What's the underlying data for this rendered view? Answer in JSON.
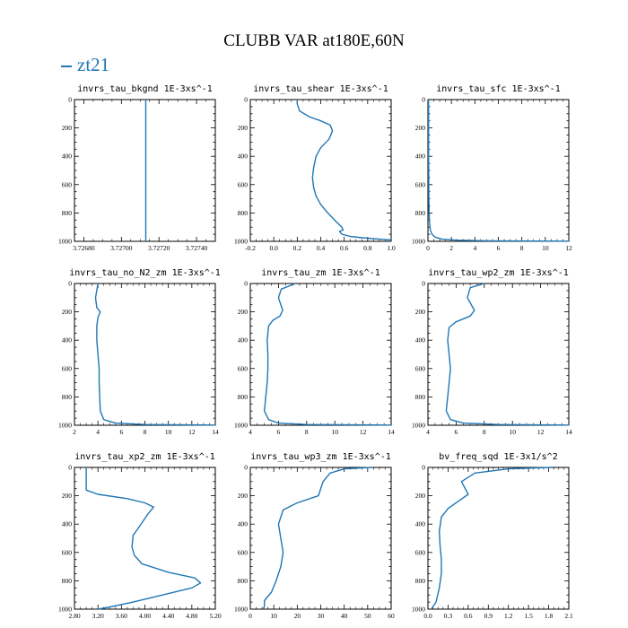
{
  "title": "CLUBB VAR at180E,60N",
  "legend": {
    "label": "zt21",
    "color": "#1f77b4"
  },
  "chart_data": [
    {
      "type": "line",
      "title": "invrs_tau_bkgnd   1E-3xs^-1",
      "xlim": [
        3.72675,
        3.7275
      ],
      "xticks": [
        "3.72680",
        "3.72700",
        "3.72720",
        "3.72740"
      ],
      "xtick_values": [
        3.7268,
        3.727,
        3.7272,
        3.7274
      ],
      "ylim": [
        1000,
        0
      ],
      "yticks": [
        "0",
        "200",
        "400",
        "600",
        "800",
        "1000"
      ],
      "series": [
        {
          "x": [
            3.72713,
            3.72713
          ],
          "y": [
            0,
            1000
          ]
        }
      ]
    },
    {
      "type": "line",
      "title": "invrs_tau_shear   1E-3xs^-1",
      "xlim": [
        -0.2,
        1.0
      ],
      "xticks": [
        "-0.2",
        "0.0",
        "0.2",
        "0.4",
        "0.6",
        "0.8",
        "1.0"
      ],
      "xtick_values": [
        -0.2,
        0.0,
        0.2,
        0.4,
        0.6,
        0.8,
        1.0
      ],
      "ylim": [
        1000,
        0
      ],
      "yticks": [
        "0",
        "200",
        "400",
        "600",
        "800",
        "1000"
      ],
      "series": [
        {
          "x": [
            0.2,
            0.2,
            0.22,
            0.3,
            0.4,
            0.48,
            0.5,
            0.47,
            0.4,
            0.36,
            0.34,
            0.33,
            0.34,
            0.36,
            0.4,
            0.46,
            0.53,
            0.58,
            0.59,
            0.56,
            0.58,
            0.65,
            0.75,
            0.9,
            1.0
          ],
          "y": [
            0,
            30,
            80,
            120,
            150,
            180,
            220,
            280,
            340,
            400,
            480,
            550,
            620,
            680,
            740,
            800,
            860,
            900,
            920,
            930,
            950,
            965,
            975,
            985,
            990
          ]
        }
      ]
    },
    {
      "type": "line",
      "title": "invrs_tau_sfc   1E-3xs^-1",
      "xlim": [
        0,
        12
      ],
      "xticks": [
        "0",
        "2",
        "4",
        "6",
        "8",
        "10",
        "12"
      ],
      "xtick_values": [
        0,
        2,
        4,
        6,
        8,
        10,
        12
      ],
      "ylim": [
        1000,
        0
      ],
      "yticks": [
        "0",
        "200",
        "400",
        "600",
        "800",
        "1000"
      ],
      "series": [
        {
          "x": [
            0.05,
            0.05,
            0.08,
            0.12,
            0.2,
            0.35,
            0.6,
            1.2,
            2.5,
            5.0,
            9.0,
            12.0
          ],
          "y": [
            0,
            400,
            700,
            850,
            920,
            950,
            970,
            985,
            992,
            996,
            998,
            999
          ]
        }
      ]
    },
    {
      "type": "line",
      "title": "invrs_tau_no_N2_zm   1E-3xs^-1",
      "xlim": [
        2,
        14
      ],
      "xticks": [
        "2",
        "4",
        "6",
        "8",
        "10",
        "12",
        "14"
      ],
      "xtick_values": [
        2,
        4,
        6,
        8,
        10,
        12,
        14
      ],
      "ylim": [
        1000,
        0
      ],
      "yticks": [
        "0",
        "200",
        "400",
        "600",
        "800",
        "1000"
      ],
      "series": [
        {
          "x": [
            4.0,
            3.8,
            3.9,
            4.2,
            4.0,
            3.9,
            3.9,
            4.0,
            4.1,
            4.1,
            4.2,
            4.5,
            5.5,
            8.0,
            14.0
          ],
          "y": [
            0,
            100,
            170,
            200,
            240,
            300,
            400,
            500,
            600,
            700,
            900,
            960,
            985,
            995,
            999
          ]
        }
      ]
    },
    {
      "type": "line",
      "title": "invrs_tau_zm   1E-3xs^-1",
      "xlim": [
        4,
        14
      ],
      "xticks": [
        "4",
        "6",
        "8",
        "10",
        "12",
        "14"
      ],
      "xtick_values": [
        4,
        6,
        8,
        10,
        12,
        14
      ],
      "ylim": [
        1000,
        0
      ],
      "yticks": [
        "0",
        "200",
        "400",
        "600",
        "800",
        "1000"
      ],
      "series": [
        {
          "x": [
            7.2,
            6.2,
            6.0,
            6.3,
            6.1,
            5.6,
            5.3,
            5.2,
            5.25,
            5.25,
            5.2,
            5.0,
            5.3,
            6.0,
            8.0,
            14.0
          ],
          "y": [
            0,
            40,
            100,
            190,
            230,
            260,
            300,
            400,
            500,
            600,
            700,
            900,
            960,
            985,
            995,
            999
          ]
        }
      ]
    },
    {
      "type": "line",
      "title": "invrs_tau_wp2_zm   1E-3xs^-1",
      "xlim": [
        4,
        14
      ],
      "xticks": [
        "4",
        "6",
        "8",
        "10",
        "12",
        "14"
      ],
      "xtick_values": [
        4,
        6,
        8,
        10,
        12,
        14
      ],
      "ylim": [
        1000,
        0
      ],
      "yticks": [
        "0",
        "200",
        "400",
        "600",
        "800",
        "1000"
      ],
      "series": [
        {
          "x": [
            8.0,
            7.0,
            6.8,
            7.3,
            7.0,
            6.0,
            5.5,
            5.4,
            5.5,
            5.6,
            5.5,
            5.3,
            5.6,
            6.5,
            9.0,
            14.0
          ],
          "y": [
            0,
            30,
            100,
            190,
            230,
            270,
            310,
            400,
            500,
            600,
            700,
            900,
            960,
            985,
            995,
            999
          ]
        }
      ]
    },
    {
      "type": "line",
      "title": "invrs_tau_xp2_zm   1E-3xs^-1",
      "xlim": [
        2.8,
        5.2
      ],
      "xticks": [
        "2.80",
        "3.20",
        "3.60",
        "4.00",
        "4.40",
        "4.80",
        "5.20"
      ],
      "xtick_values": [
        2.8,
        3.2,
        3.6,
        4.0,
        4.4,
        4.8,
        5.2
      ],
      "ylim": [
        1000,
        0
      ],
      "yticks": [
        "0",
        "200",
        "400",
        "600",
        "800",
        "1000"
      ],
      "series": [
        {
          "x": [
            3.0,
            3.0,
            3.0,
            3.2,
            3.7,
            4.0,
            4.15,
            4.05,
            3.9,
            3.8,
            3.78,
            3.82,
            3.95,
            4.4,
            4.85,
            4.95,
            4.8,
            4.3,
            3.8,
            3.4,
            3.2
          ],
          "y": [
            0,
            100,
            160,
            190,
            220,
            250,
            280,
            330,
            420,
            480,
            560,
            620,
            680,
            740,
            780,
            815,
            850,
            900,
            950,
            985,
            1000
          ]
        }
      ]
    },
    {
      "type": "line",
      "title": "invrs_tau_wp3_zm   1E-3xs^-1",
      "xlim": [
        0,
        60
      ],
      "xticks": [
        "0",
        "10",
        "20",
        "30",
        "40",
        "50",
        "60"
      ],
      "xtick_values": [
        0,
        10,
        20,
        30,
        40,
        50,
        60
      ],
      "ylim": [
        1000,
        0
      ],
      "yticks": [
        "0",
        "200",
        "400",
        "600",
        "800",
        "1000"
      ],
      "series": [
        {
          "x": [
            52.0,
            40.0,
            34.0,
            31.0,
            29.0,
            20.0,
            14.0,
            12.0,
            13.0,
            14.0,
            13.0,
            11.0,
            9.0,
            6.0,
            6.0,
            5.5
          ],
          "y": [
            0,
            10,
            40,
            100,
            200,
            250,
            300,
            400,
            500,
            600,
            700,
            800,
            880,
            940,
            980,
            1000
          ]
        }
      ]
    },
    {
      "type": "line",
      "title": "bv_freq_sqd   1E-3x1/s^2",
      "xlim": [
        0.0,
        2.1
      ],
      "xticks": [
        "0.0",
        "0.3",
        "0.6",
        "0.9",
        "1.2",
        "1.5",
        "1.8",
        "2.1"
      ],
      "xtick_values": [
        0.0,
        0.3,
        0.6,
        0.9,
        1.2,
        1.5,
        1.8,
        2.1
      ],
      "ylim": [
        1000,
        0
      ],
      "yticks": [
        "0",
        "200",
        "400",
        "600",
        "800",
        "1000"
      ],
      "series": [
        {
          "x": [
            1.85,
            1.2,
            0.7,
            0.5,
            0.6,
            0.45,
            0.3,
            0.2,
            0.17,
            0.18,
            0.2,
            0.2,
            0.17,
            0.12,
            0.05
          ],
          "y": [
            0,
            10,
            40,
            100,
            190,
            240,
            290,
            350,
            450,
            550,
            650,
            750,
            850,
            950,
            1000
          ]
        }
      ]
    }
  ]
}
